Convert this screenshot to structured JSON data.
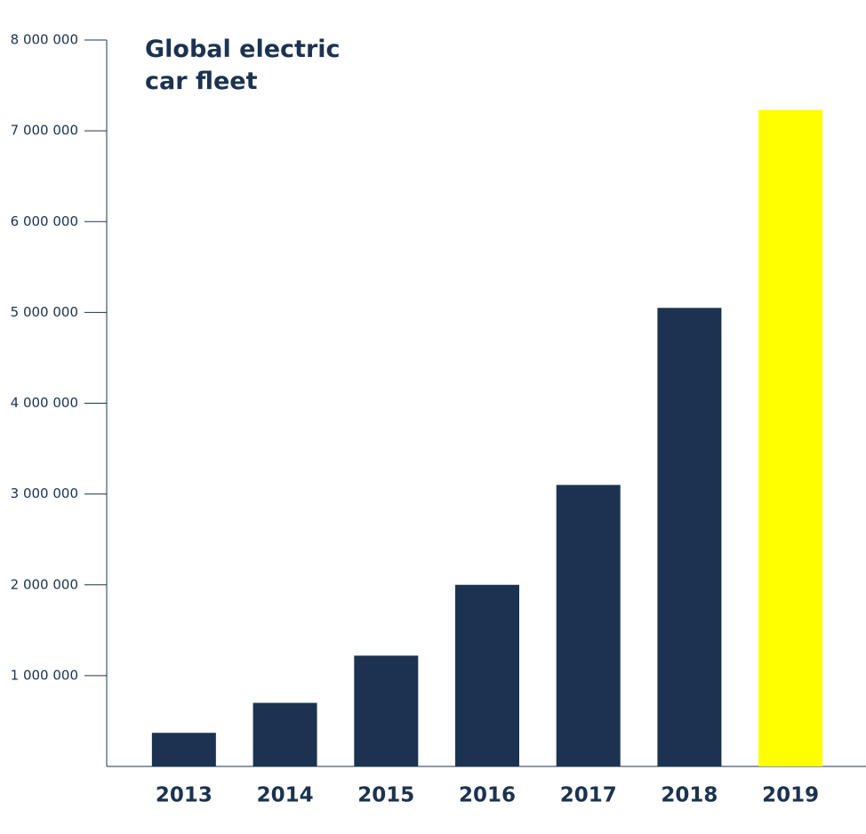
{
  "chart_data": {
    "type": "bar",
    "title": "Global electric car fleet",
    "categories": [
      "2013",
      "2014",
      "2015",
      "2016",
      "2017",
      "2018",
      "2019"
    ],
    "values": [
      370000,
      700000,
      1220000,
      2000000,
      3100000,
      5050000,
      7230000
    ],
    "colors": [
      "#1b3350",
      "#1b3350",
      "#1b3350",
      "#1b3350",
      "#1b3350",
      "#1b3350",
      "#ffff00"
    ],
    "ylim": [
      0,
      8000000
    ],
    "yticks": [
      {
        "value": 1000000,
        "label": "1 000 000"
      },
      {
        "value": 2000000,
        "label": "2 000 000"
      },
      {
        "value": 3000000,
        "label": "3 000 000"
      },
      {
        "value": 4000000,
        "label": "4 000 000"
      },
      {
        "value": 5000000,
        "label": "5 000 000"
      },
      {
        "value": 6000000,
        "label": "6 000 000"
      },
      {
        "value": 7000000,
        "label": "7 000 000"
      },
      {
        "value": 8000000,
        "label": "8 000 000"
      }
    ],
    "grid": false
  }
}
